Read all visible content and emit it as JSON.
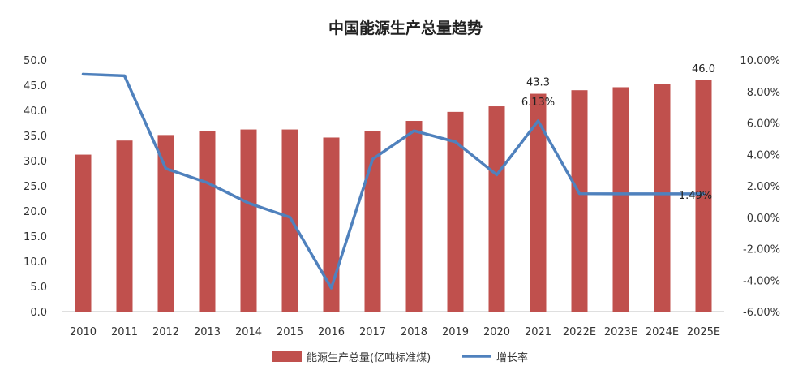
{
  "chart_data": {
    "type": "bar",
    "title": "中国能源生产总量趋势",
    "categories": [
      "2010",
      "2011",
      "2012",
      "2013",
      "2014",
      "2015",
      "2016",
      "2017",
      "2018",
      "2019",
      "2020",
      "2021",
      "2022E",
      "2023E",
      "2024E",
      "2025E"
    ],
    "series": [
      {
        "name": "能源生产总量(亿吨标准煤)",
        "type": "bar",
        "axis": "left",
        "color": "#c0504d",
        "values": [
          31.2,
          34.0,
          35.1,
          35.9,
          36.2,
          36.2,
          34.6,
          35.9,
          37.9,
          39.7,
          40.8,
          43.3,
          44.0,
          44.6,
          45.3,
          46.0
        ]
      },
      {
        "name": "增长率",
        "type": "line",
        "axis": "right",
        "color": "#4f81bd",
        "values": [
          9.1,
          9.0,
          3.1,
          2.2,
          0.9,
          0.0,
          -4.5,
          3.7,
          5.5,
          4.8,
          2.7,
          6.13,
          1.5,
          1.49,
          1.49,
          1.49
        ]
      }
    ],
    "ylim_left": [
      0,
      50
    ],
    "yticks_left": [
      "0.0",
      "5.0",
      "10.0",
      "15.0",
      "20.0",
      "25.0",
      "30.0",
      "35.0",
      "40.0",
      "45.0",
      "50.0"
    ],
    "ylim_right": [
      -6,
      10
    ],
    "yticks_right": [
      "-6.00%",
      "-4.00%",
      "-2.00%",
      "0.00%",
      "2.00%",
      "4.00%",
      "6.00%",
      "8.00%",
      "10.00%"
    ],
    "grid": false,
    "legend_position": "bottom",
    "annotations": [
      {
        "series": 0,
        "index": 11,
        "text": "43.3"
      },
      {
        "series": 0,
        "index": 15,
        "text": "46.0"
      },
      {
        "series": 1,
        "index": 11,
        "text": "6.13%"
      },
      {
        "series": 1,
        "index": 15,
        "text": "1.49%"
      }
    ]
  }
}
